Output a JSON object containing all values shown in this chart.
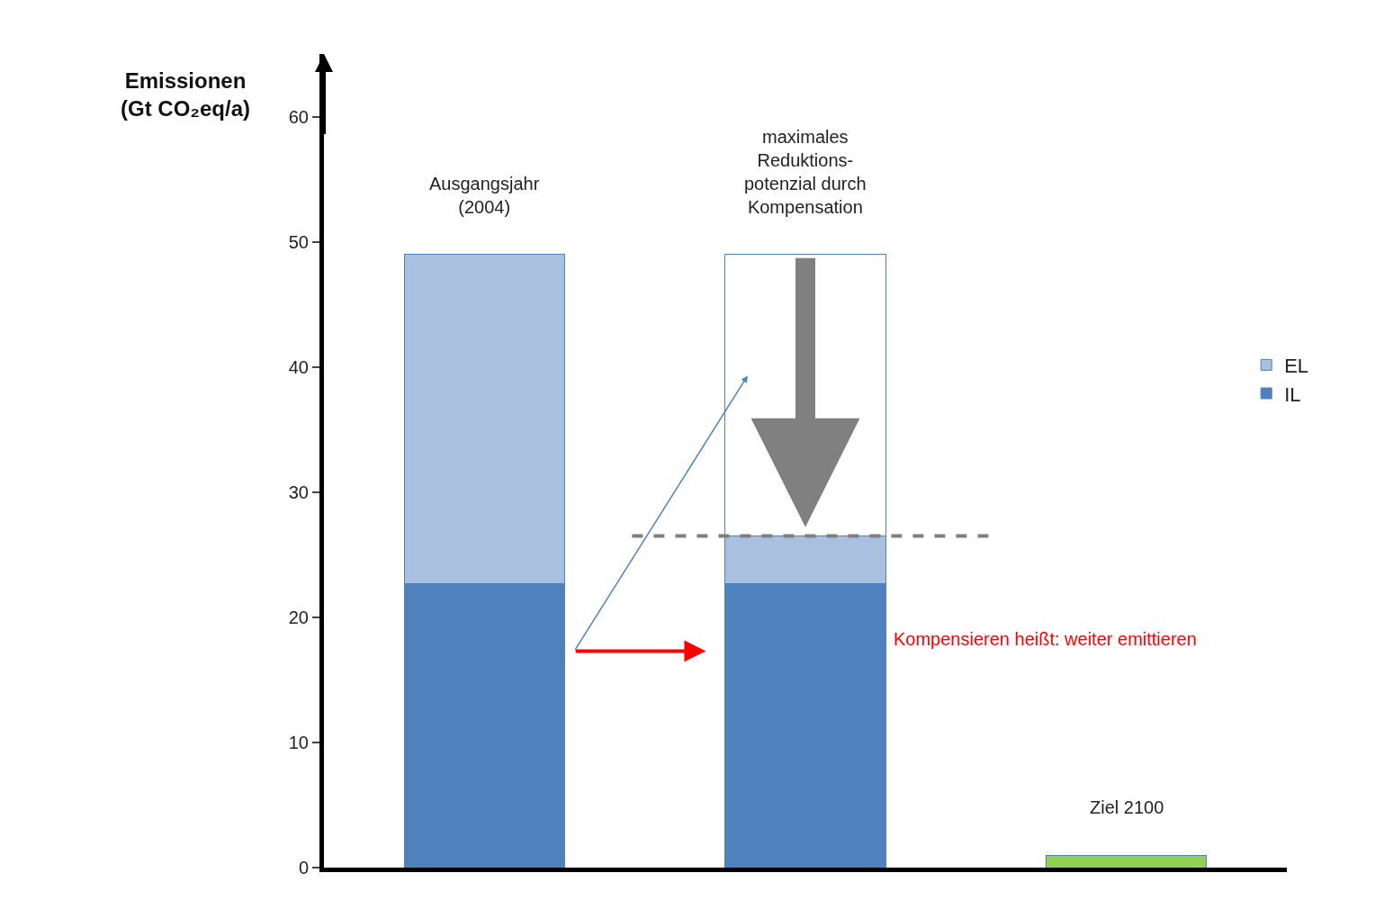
{
  "chart_data": {
    "type": "bar",
    "stacked": true,
    "ylabel": "Emissionen\n(Gt CO₂eq/a)",
    "categories": [
      "Ausgangsjahr\n(2004)",
      "maximales\nReduktions-\npotenzial durch\nKompensation",
      "Ziel 2100"
    ],
    "series": [
      {
        "name": "IL",
        "color": "#4f81bd",
        "values": [
          22.7,
          22.7,
          null
        ]
      },
      {
        "name": "EL",
        "color": "#a9c0e0",
        "values": [
          26.3,
          3.8,
          null
        ]
      },
      {
        "color": "#ffffff",
        "values": [
          null,
          22.5,
          null
        ]
      },
      {
        "color": "#92d050",
        "values": [
          null,
          null,
          1.0
        ]
      }
    ],
    "ylim": [
      0,
      65
    ],
    "yticks": [
      0,
      10,
      20,
      30,
      40,
      50,
      60
    ],
    "legend": "right",
    "ref_lines": [
      {
        "axis": "y",
        "value": 26.5,
        "color": "#808080",
        "line_style": "dashed"
      }
    ],
    "annotations": [
      "Kompensieren heißt: weiter emittieren"
    ]
  }
}
